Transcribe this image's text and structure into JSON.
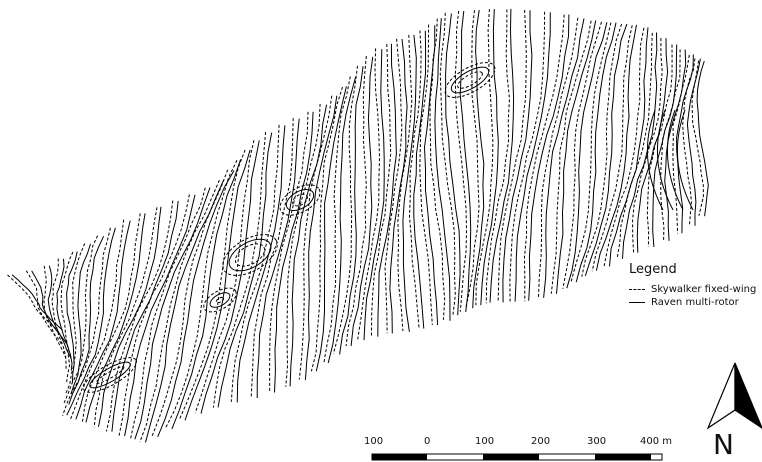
{
  "legend": {
    "title": "Legend",
    "items": [
      {
        "label": "Skywalker fixed-wing",
        "style": "dashed"
      },
      {
        "label": "Raven multi-rotor",
        "style": "solid"
      }
    ]
  },
  "scale_bar": {
    "labels": [
      "100",
      "0",
      "100",
      "200",
      "300",
      "400 m"
    ]
  },
  "north_arrow": {
    "letter": "N"
  },
  "colors": {
    "contour": "#000000",
    "background": "#ffffff"
  }
}
